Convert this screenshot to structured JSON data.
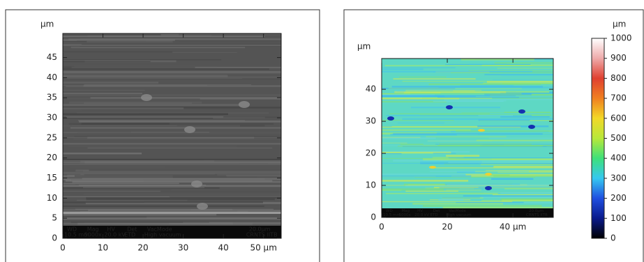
{
  "chart_data": [
    {
      "type": "image",
      "y_label": "µm",
      "xlim": [
        0,
        54.4
      ],
      "ylim": [
        0,
        51
      ],
      "xticks": [
        0,
        10,
        20,
        30,
        40,
        {
          "value": 50,
          "label": "50 µm"
        }
      ],
      "yticks": [
        0,
        5,
        10,
        15,
        20,
        25,
        30,
        35,
        40,
        45
      ],
      "info_labels": [
        "WD",
        "Mag",
        "HV",
        "Det",
        "VacMode",
        "20.0µm"
      ],
      "info_values": [
        "10.5 mm",
        "5000x",
        "20.0 kV",
        "ETD",
        "High vacuum",
        "CRNTS IITB"
      ]
    },
    {
      "type": "heatmap",
      "y_label": "µm",
      "xlim": [
        0,
        52.3
      ],
      "ylim": [
        0,
        49.6
      ],
      "xticks": [
        0,
        20,
        {
          "value": 40,
          "label": "40 µm"
        }
      ],
      "yticks": [
        0,
        10,
        20,
        30,
        40
      ],
      "info_labels": [
        "WD",
        "Mag",
        "HV",
        "Det",
        "VacMode",
        "20.0µm"
      ],
      "info_values": [
        "10.5 mm",
        "5000x",
        "20.0 kV",
        "ETD",
        "High vacuum",
        "CRNTS IITB"
      ],
      "colorbar": {
        "label": "µm",
        "lim": [
          0,
          1000
        ],
        "ticks": [
          0,
          100,
          200,
          300,
          400,
          500,
          600,
          700,
          800,
          900,
          1000
        ]
      }
    }
  ]
}
